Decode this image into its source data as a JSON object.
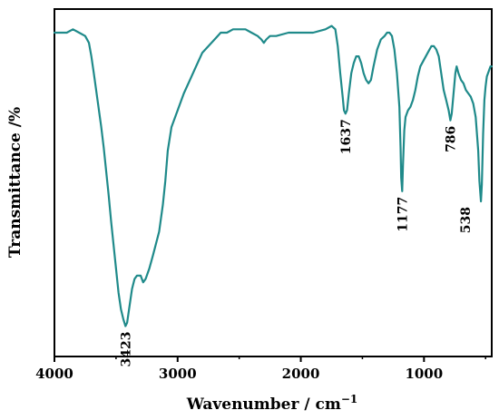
{
  "chart_data": {
    "type": "line",
    "xlabel_main": "Wavenumber / cm",
    "xlabel_sup": "−1",
    "ylabel": "Transmittance /%",
    "xlim": [
      4000,
      450
    ],
    "x_reversed": true,
    "yaxis_ticks_shown": false,
    "x_ticks": [
      "4000",
      "3000",
      "2000",
      "1000"
    ],
    "grid": false,
    "legend": "none",
    "series": [
      {
        "color": "#1f8a8a",
        "points": [
          [
            4000,
            0.9
          ],
          [
            3900,
            0.9
          ],
          [
            3850,
            0.91
          ],
          [
            3800,
            0.9
          ],
          [
            3750,
            0.89
          ],
          [
            3720,
            0.87
          ],
          [
            3700,
            0.83
          ],
          [
            3680,
            0.78
          ],
          [
            3650,
            0.7
          ],
          [
            3620,
            0.62
          ],
          [
            3600,
            0.56
          ],
          [
            3580,
            0.49
          ],
          [
            3560,
            0.42
          ],
          [
            3540,
            0.34
          ],
          [
            3520,
            0.27
          ],
          [
            3500,
            0.2
          ],
          [
            3480,
            0.13
          ],
          [
            3460,
            0.08
          ],
          [
            3440,
            0.05
          ],
          [
            3423,
            0.03
          ],
          [
            3410,
            0.04
          ],
          [
            3390,
            0.09
          ],
          [
            3370,
            0.14
          ],
          [
            3350,
            0.17
          ],
          [
            3330,
            0.18
          ],
          [
            3300,
            0.18
          ],
          [
            3280,
            0.16
          ],
          [
            3260,
            0.17
          ],
          [
            3230,
            0.2
          ],
          [
            3200,
            0.24
          ],
          [
            3150,
            0.31
          ],
          [
            3120,
            0.39
          ],
          [
            3100,
            0.46
          ],
          [
            3080,
            0.55
          ],
          [
            3050,
            0.62
          ],
          [
            3000,
            0.67
          ],
          [
            2950,
            0.72
          ],
          [
            2900,
            0.76
          ],
          [
            2850,
            0.8
          ],
          [
            2800,
            0.84
          ],
          [
            2750,
            0.86
          ],
          [
            2700,
            0.88
          ],
          [
            2650,
            0.9
          ],
          [
            2600,
            0.9
          ],
          [
            2550,
            0.91
          ],
          [
            2500,
            0.91
          ],
          [
            2450,
            0.91
          ],
          [
            2400,
            0.9
          ],
          [
            2350,
            0.89
          ],
          [
            2320,
            0.88
          ],
          [
            2300,
            0.87
          ],
          [
            2280,
            0.88
          ],
          [
            2250,
            0.89
          ],
          [
            2200,
            0.89
          ],
          [
            2100,
            0.9
          ],
          [
            2000,
            0.9
          ],
          [
            1900,
            0.9
          ],
          [
            1800,
            0.91
          ],
          [
            1750,
            0.92
          ],
          [
            1720,
            0.91
          ],
          [
            1700,
            0.86
          ],
          [
            1680,
            0.78
          ],
          [
            1660,
            0.71
          ],
          [
            1650,
            0.67
          ],
          [
            1637,
            0.66
          ],
          [
            1625,
            0.67
          ],
          [
            1610,
            0.72
          ],
          [
            1590,
            0.78
          ],
          [
            1570,
            0.81
          ],
          [
            1550,
            0.83
          ],
          [
            1530,
            0.83
          ],
          [
            1510,
            0.81
          ],
          [
            1490,
            0.78
          ],
          [
            1470,
            0.76
          ],
          [
            1450,
            0.75
          ],
          [
            1430,
            0.76
          ],
          [
            1410,
            0.8
          ],
          [
            1380,
            0.85
          ],
          [
            1350,
            0.88
          ],
          [
            1320,
            0.89
          ],
          [
            1300,
            0.9
          ],
          [
            1280,
            0.9
          ],
          [
            1260,
            0.89
          ],
          [
            1240,
            0.85
          ],
          [
            1220,
            0.78
          ],
          [
            1200,
            0.68
          ],
          [
            1190,
            0.56
          ],
          [
            1185,
            0.47
          ],
          [
            1177,
            0.43
          ],
          [
            1170,
            0.51
          ],
          [
            1160,
            0.61
          ],
          [
            1150,
            0.65
          ],
          [
            1130,
            0.67
          ],
          [
            1110,
            0.68
          ],
          [
            1090,
            0.7
          ],
          [
            1070,
            0.73
          ],
          [
            1050,
            0.77
          ],
          [
            1030,
            0.8
          ],
          [
            1000,
            0.82
          ],
          [
            970,
            0.84
          ],
          [
            940,
            0.86
          ],
          [
            920,
            0.86
          ],
          [
            900,
            0.85
          ],
          [
            880,
            0.83
          ],
          [
            860,
            0.78
          ],
          [
            840,
            0.73
          ],
          [
            820,
            0.7
          ],
          [
            800,
            0.67
          ],
          [
            786,
            0.64
          ],
          [
            775,
            0.66
          ],
          [
            760,
            0.72
          ],
          [
            745,
            0.78
          ],
          [
            735,
            0.8
          ],
          [
            720,
            0.78
          ],
          [
            700,
            0.76
          ],
          [
            680,
            0.75
          ],
          [
            660,
            0.73
          ],
          [
            640,
            0.72
          ],
          [
            620,
            0.71
          ],
          [
            600,
            0.69
          ],
          [
            580,
            0.65
          ],
          [
            560,
            0.55
          ],
          [
            550,
            0.46
          ],
          [
            538,
            0.4
          ],
          [
            530,
            0.45
          ],
          [
            520,
            0.6
          ],
          [
            510,
            0.7
          ],
          [
            500,
            0.74
          ],
          [
            490,
            0.77
          ],
          [
            480,
            0.78
          ],
          [
            470,
            0.79
          ],
          [
            460,
            0.8
          ],
          [
            450,
            0.8
          ]
        ]
      }
    ],
    "annotations": [
      {
        "text": "3423",
        "x": 3423,
        "y": 0.03,
        "placement": "below"
      },
      {
        "text": "1637",
        "x": 1637,
        "y": 0.66,
        "placement": "below"
      },
      {
        "text": "1177",
        "x": 1177,
        "y": 0.43,
        "placement": "below"
      },
      {
        "text": "786",
        "x": 786,
        "y": 0.64,
        "placement": "below"
      },
      {
        "text": "538",
        "x": 538,
        "y": 0.4,
        "placement": "below-left"
      }
    ]
  }
}
